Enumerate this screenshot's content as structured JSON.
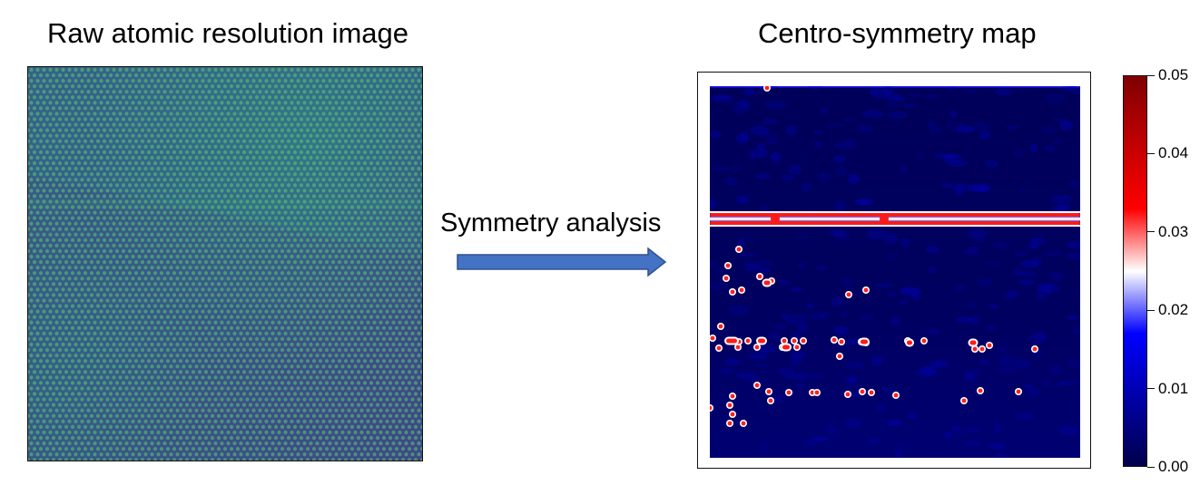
{
  "titles": {
    "left": "Raw atomic resolution image",
    "right": "Centro-symmetry map"
  },
  "arrow": {
    "label": "Symmetry analysis",
    "color": "#4472c4"
  },
  "raw_image": {
    "colormap": "viridis",
    "description_icon": "atomic-lattice-image"
  },
  "map_image": {
    "colormap": "seismic"
  },
  "colorbar": {
    "min": 0.0,
    "max": 0.05,
    "ticks": [
      "0.00",
      "0.01",
      "0.02",
      "0.03",
      "0.04",
      "0.05"
    ],
    "colors": [
      "#00004c",
      "#0000ff",
      "#ffffff",
      "#ff0000",
      "#800000"
    ]
  }
}
